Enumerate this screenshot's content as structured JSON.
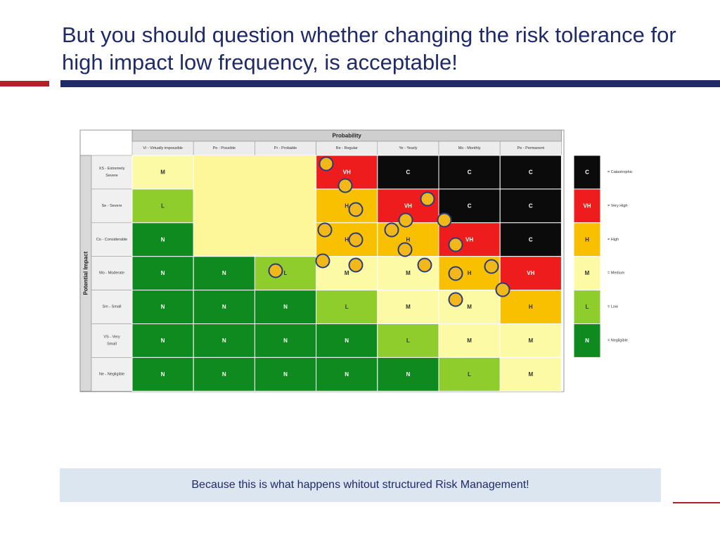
{
  "slide": {
    "title": "But you should question whether changing the risk tolerance for high impact low frequency,  is acceptable!",
    "footer": "Because this is what happens whitout structured Risk Management!"
  },
  "matrix": {
    "probability_header": "Probability",
    "impact_header": "Potential Impact",
    "columns": [
      "Vi - Virtually impossible",
      "Po - Possible",
      "Pr - Probable",
      "Re - Regular",
      "Ye - Yearly",
      "Mo - Monthly",
      "Pe - Permanent"
    ],
    "rows": [
      "XS - Extremely Severe",
      "Se - Severe",
      "Co - Considerable",
      "Mo - Moderate",
      "Sm - Small",
      "VS - Very Small",
      "Ne - Negligible"
    ],
    "cells": [
      [
        "M",
        "",
        "",
        "VH",
        "C",
        "C",
        "C"
      ],
      [
        "L",
        "",
        "",
        "H",
        "VH",
        "C",
        "C"
      ],
      [
        "N",
        "",
        "",
        "H",
        "H",
        "VH",
        "C"
      ],
      [
        "N",
        "N",
        "L",
        "M",
        "M",
        "H",
        "VH"
      ],
      [
        "N",
        "N",
        "N",
        "L",
        "M",
        "M",
        "H"
      ],
      [
        "N",
        "N",
        "N",
        "N",
        "L",
        "M",
        "M"
      ],
      [
        "N",
        "N",
        "N",
        "N",
        "N",
        "L",
        "M"
      ]
    ],
    "covered_cells_note": "cells in rows 1-3 of Po/Pr columns are hidden by a pale-yellow overlay"
  },
  "legend": [
    {
      "code": "C",
      "label": "= Catastrophic"
    },
    {
      "code": "VH",
      "label": "= Very High"
    },
    {
      "code": "H",
      "label": "= High"
    },
    {
      "code": "M",
      "label": "= Medium"
    },
    {
      "code": "L",
      "label": "= Low"
    },
    {
      "code": "N",
      "label": "= Negligible"
    }
  ],
  "colors": {
    "C": "#0b0b0b",
    "VH": "#ee1c1c",
    "H": "#f9c000",
    "M": "#fdfaa5",
    "L": "#8fcd2c",
    "N": "#0f8a1e",
    "overlay": "#fdf79a",
    "circle_fill": "#f2b81a",
    "circle_stroke": "#2a3b80",
    "title": "#1f2a6b",
    "accent_red": "#b3202a"
  }
}
